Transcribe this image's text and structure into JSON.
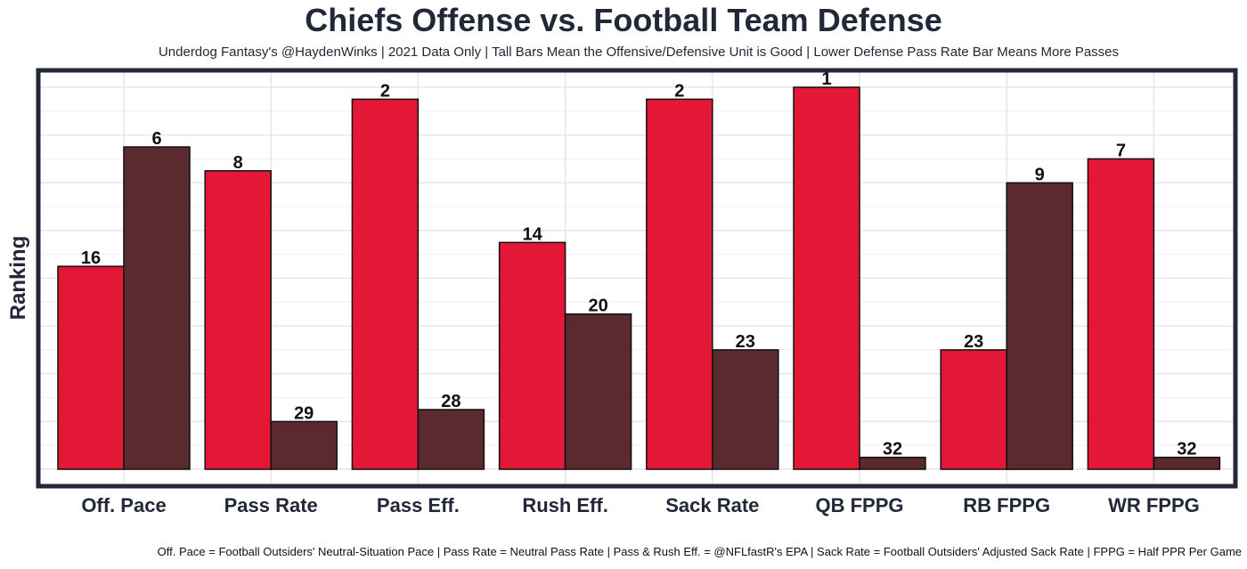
{
  "chart_data": {
    "type": "bar",
    "title": "Chiefs Offense vs. Football Team Defense",
    "subtitle": "Underdog Fantasy's @HaydenWinks | 2021 Data Only | Tall Bars Mean the Offensive/Defensive Unit is Good | Lower Defense Pass Rate Bar Means More Passes",
    "caption": "Off. Pace = Football Outsiders' Neutral-Situation Pace | Pass Rate = Neutral Pass Rate | Pass & Rush Eff. = @NFLfastR's EPA | Sack Rate = Football Outsiders' Adjusted Sack Rate | FPPG = Half PPR Per Game",
    "xlabel": "",
    "ylabel": "Ranking",
    "ylim": [
      32,
      1
    ],
    "grid": true,
    "categories": [
      "Off. Pace",
      "Pass Rate",
      "Pass Eff.",
      "Rush Eff.",
      "Sack Rate",
      "QB FPPG",
      "RB FPPG",
      "WR FPPG"
    ],
    "series": [
      {
        "color": "#E31837",
        "values": [
          16,
          8,
          2,
          14,
          2,
          1,
          23,
          7
        ]
      },
      {
        "color": "#5A2A2F",
        "values": [
          6,
          29,
          28,
          20,
          23,
          32,
          9,
          32
        ]
      }
    ]
  }
}
